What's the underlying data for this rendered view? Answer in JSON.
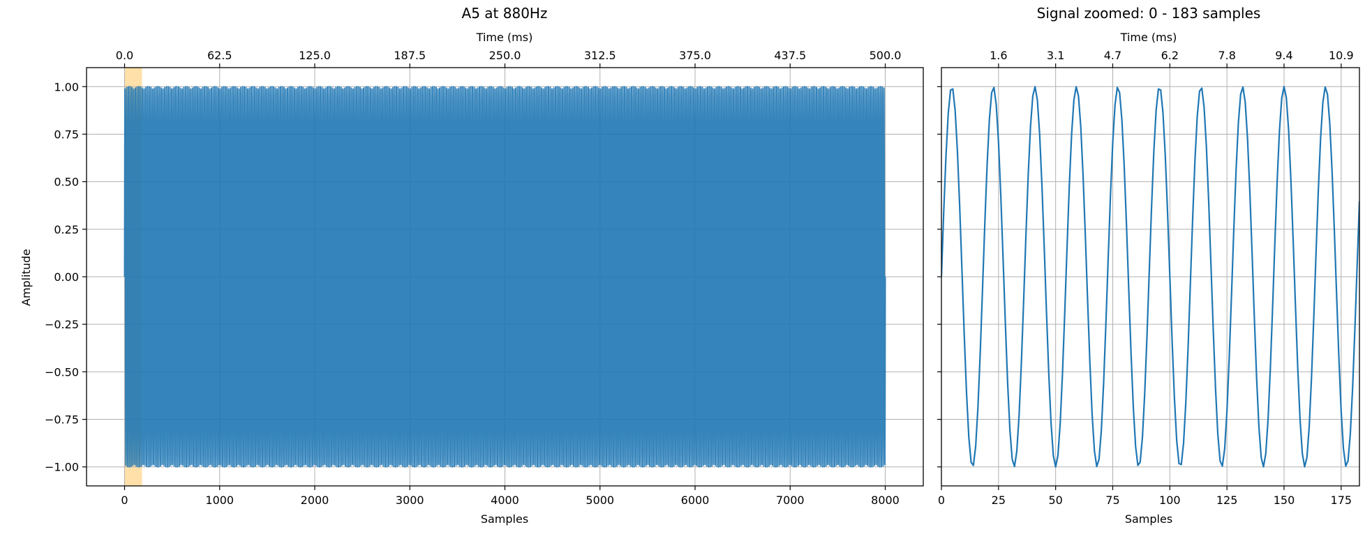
{
  "chart_data": [
    {
      "type": "line",
      "title": "A5 at 880Hz",
      "xlabel": "Samples",
      "ylabel": "Amplitude",
      "secondary_xlabel": "Time (ms)",
      "xlim": [
        -400,
        8400
      ],
      "ylim": [
        -1.1,
        1.1
      ],
      "xticks": [
        0,
        1000,
        2000,
        3000,
        4000,
        5000,
        6000,
        7000,
        8000
      ],
      "xtick_labels": [
        "0",
        "1000",
        "2000",
        "3000",
        "4000",
        "5000",
        "6000",
        "7000",
        "8000"
      ],
      "yticks": [
        1.0,
        0.75,
        0.5,
        0.25,
        0.0,
        -0.25,
        -0.5,
        -0.75,
        -1.0
      ],
      "ytick_labels": [
        "1.00",
        "0.75",
        "0.50",
        "0.25",
        "0.00",
        "−0.25",
        "−0.50",
        "−0.75",
        "−1.00"
      ],
      "secondary_xticks": [
        0,
        1000,
        2000,
        3000,
        4000,
        5000,
        6000,
        7000,
        8000
      ],
      "secondary_xtick_labels": [
        "0.0",
        "62.5",
        "125.0",
        "187.5",
        "250.0",
        "312.5",
        "375.0",
        "437.5",
        "500.0"
      ],
      "highlight_span": {
        "x": [
          0,
          183
        ],
        "color": "#ffe0a8"
      },
      "grid": true,
      "series": [
        {
          "color": "#1f77b4",
          "signal": {
            "sample_rate": 16000,
            "frequency": 880,
            "amplitude": 1.0,
            "x": [
              0,
              8000
            ]
          }
        }
      ]
    },
    {
      "type": "line",
      "title": "Signal zoomed: 0 - 183 samples",
      "xlabel": "Samples",
      "secondary_xlabel": "Time (ms)",
      "xlim": [
        0,
        183
      ],
      "ylim": [
        -1.1,
        1.1
      ],
      "xticks": [
        0,
        25,
        50,
        75,
        100,
        125,
        150,
        175
      ],
      "xtick_labels": [
        "0",
        "25",
        "50",
        "75",
        "100",
        "125",
        "150",
        "175"
      ],
      "secondary_xticks": [
        25,
        50,
        75,
        100,
        125,
        150,
        175
      ],
      "secondary_xtick_labels": [
        "1.6",
        "3.1",
        "4.7",
        "6.2",
        "7.8",
        "9.4",
        "10.9"
      ],
      "grid": true,
      "series": [
        {
          "color": "#1f77b4",
          "signal": {
            "sample_rate": 16000,
            "frequency": 880,
            "amplitude": 1.0,
            "x": [
              0,
              183
            ]
          }
        }
      ]
    }
  ]
}
